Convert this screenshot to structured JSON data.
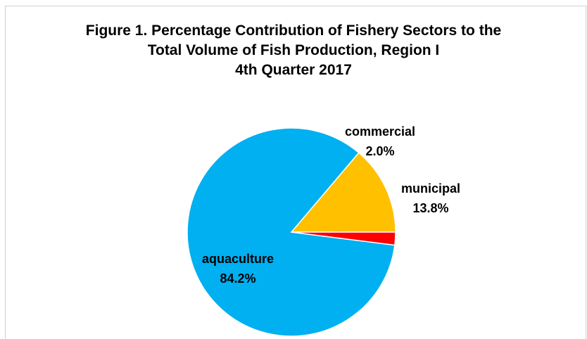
{
  "chart_data": {
    "type": "pie",
    "title": "Figure 1. Percentage Contribution of Fishery Sectors to the\nTotal Volume of Fish Production, Region I\n4th Quarter 2017",
    "slices": [
      {
        "label": "municipal",
        "value": 13.8,
        "value_label": "13.8%",
        "color": "#FFC000"
      },
      {
        "label": "aquaculture",
        "value": 84.2,
        "value_label": "84.2%",
        "color": "#00B0F0"
      },
      {
        "label": "commercial",
        "value": 2.0,
        "value_label": "2.0%",
        "color": "#FF0000"
      }
    ],
    "legend": "none",
    "data_labels": "category name and percentage"
  }
}
